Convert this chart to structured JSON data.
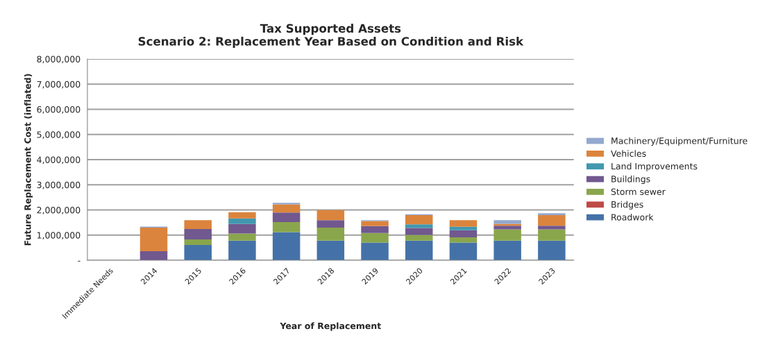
{
  "chart_data": {
    "type": "bar",
    "stacked": true,
    "title": "Tax Supported Assets\nScenario 2: Replacement Year Based on Condition and Risk",
    "xlabel": "Year of Replacement",
    "ylabel": "Future Replacement Cost (inflated)",
    "categories": [
      "Immediate Needs",
      "2014",
      "2015",
      "2016",
      "2017",
      "2018",
      "2019",
      "2020",
      "2021",
      "2022",
      "2023"
    ],
    "series": [
      {
        "name": "Roadwork",
        "color": "#4472a8",
        "values": [
          null,
          null,
          610000,
          780000,
          1120000,
          780000,
          700000,
          780000,
          700000,
          780000,
          780000
        ]
      },
      {
        "name": "Bridges",
        "color": "#be4b48",
        "values": [
          null,
          null,
          null,
          null,
          null,
          null,
          null,
          null,
          null,
          null,
          null
        ]
      },
      {
        "name": "Storm sewer",
        "color": "#8aa64c",
        "values": [
          null,
          null,
          220000,
          280000,
          400000,
          520000,
          380000,
          230000,
          210000,
          450000,
          450000
        ]
      },
      {
        "name": "Buildings",
        "color": "#71588f",
        "values": [
          null,
          360000,
          410000,
          380000,
          380000,
          290000,
          280000,
          270000,
          280000,
          140000,
          140000
        ]
      },
      {
        "name": "Land Improvements",
        "color": "#4198af",
        "values": [
          null,
          null,
          null,
          220000,
          null,
          null,
          null,
          150000,
          140000,
          null,
          null
        ]
      },
      {
        "name": "Vehicles",
        "color": "#db843d",
        "values": [
          null,
          940000,
          350000,
          250000,
          320000,
          400000,
          200000,
          360000,
          260000,
          80000,
          420000
        ]
      },
      {
        "name": "Machinery/Equipment/Furniture",
        "color": "#93a9cf",
        "values": [
          null,
          40000,
          null,
          null,
          60000,
          null,
          30000,
          40000,
          null,
          140000,
          80000
        ]
      }
    ],
    "ylim": [
      0,
      8000000
    ],
    "yticks": [
      {
        "value": 0,
        "label": "-"
      },
      {
        "value": 1000000,
        "label": "1,000,000"
      },
      {
        "value": 2000000,
        "label": "2,000,000"
      },
      {
        "value": 3000000,
        "label": "3,000,000"
      },
      {
        "value": 4000000,
        "label": "4,000,000"
      },
      {
        "value": 5000000,
        "label": "5,000,000"
      },
      {
        "value": 6000000,
        "label": "6,000,000"
      },
      {
        "value": 7000000,
        "label": "7,000,000"
      },
      {
        "value": 8000000,
        "label": "8,000,000"
      }
    ],
    "grid": "y",
    "legend": "right"
  }
}
